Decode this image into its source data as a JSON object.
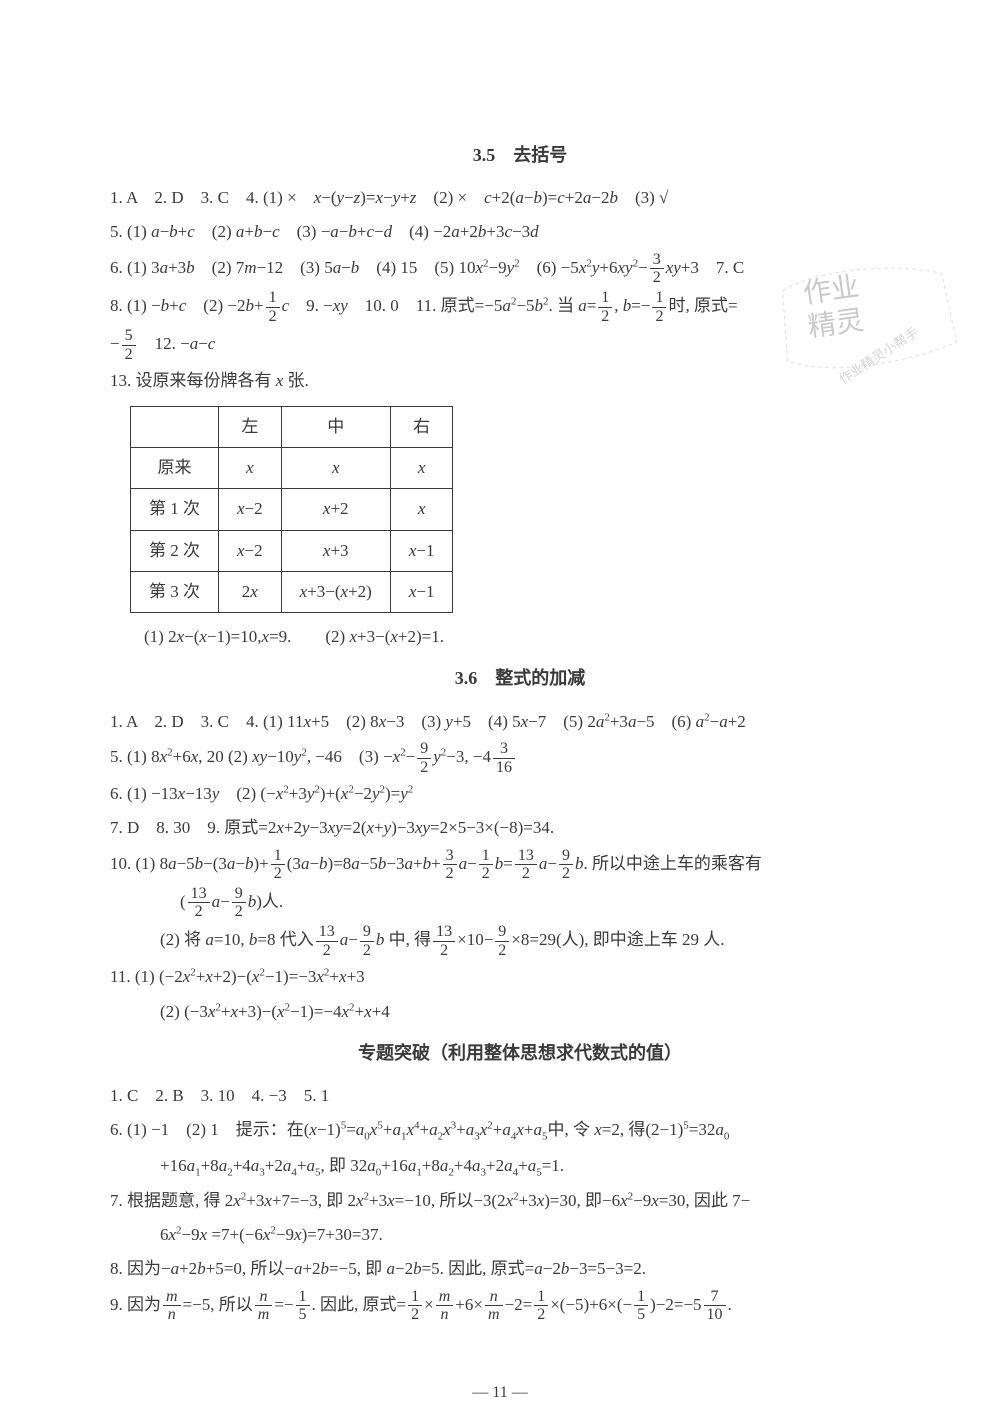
{
  "page_number": "— 11 —",
  "watermark": {
    "line1": "作业",
    "line2": "精灵",
    "small": "作业精灵小帮手"
  },
  "sections": [
    {
      "title": "3.5　去括号",
      "lines": [
        "1. A　2. D　3. C　4. (1) ×　<i>x</i>−(<i>y</i>−<i>z</i>)=<i>x</i>−<i>y</i>+<i>z</i>　(2) ×　<i>c</i>+2(<i>a</i>−<i>b</i>)=<i>c</i>+2<i>a</i>−2<i>b</i>　(3) √",
        "5. (1) <i>a</i>−<i>b</i>+<i>c</i>　(2) <i>a</i>+<i>b</i>−<i>c</i>　(3) −<i>a</i>−<i>b</i>+<i>c</i>−<i>d</i>　(4) −2<i>a</i>+2<i>b</i>+3<i>c</i>−3<i>d</i>",
        "6. (1) 3<i>a</i>+3<i>b</i>　(2) 7<i>m</i>−12　(3) 5<i>a</i>−<i>b</i>　(4) 15　(5) 10<i>x</i><sup>2</sup>−9<i>y</i><sup>2</sup>　(6) −5<i>x</i><sup>2</sup><i>y</i>+6<i>x</i><i>y</i><sup>2</sup>−{frac:3:2}<i>xy</i>+3　7. C",
        "8. (1) −<i>b</i>+<i>c</i>　(2) −2<i>b</i>+{frac:1:2}<i>c</i>　9. −<i>xy</i>　10. 0　11. 原式=−5<i>a</i><sup>2</sup>−5<i>b</i><sup>2</sup>. 当 <i>a</i>={frac:1:2}, <i>b</i>=−{frac:1:2}时, 原式=",
        "−{frac:5:2}　12. −<i>a</i>−<i>c</i>",
        "13. 设原来每份牌各有 <i>x</i> 张."
      ],
      "table": {
        "headers": [
          "",
          "左",
          "中",
          "右"
        ],
        "rows": [
          [
            "原来",
            "<i>x</i>",
            "<i>x</i>",
            "<i>x</i>"
          ],
          [
            "第 1 次",
            "<i>x</i>−2",
            "<i>x</i>+2",
            "<i>x</i>"
          ],
          [
            "第 2 次",
            "<i>x</i>−2",
            "<i>x</i>+3",
            "<i>x</i>−1"
          ],
          [
            "第 3 次",
            "2<i>x</i>",
            "<i>x</i>+3−(<i>x</i>+2)",
            "<i>x</i>−1"
          ]
        ]
      },
      "after_table": "　　(1) 2<i>x</i>−(<i>x</i>−1)=10,<i>x</i>=9.　　(2) <i>x</i>+3−(<i>x</i>+2)=1."
    },
    {
      "title": "3.6　整式的加减",
      "lines": [
        "1. A　2. D　3. C　4. (1) 11<i>x</i>+5　(2) 8<i>x</i>−3　(3) <i>y</i>+5　(4) 5<i>x</i>−7　(5) 2<i>a</i><sup>2</sup>+3<i>a</i>−5　(6) <i>a</i><sup>2</sup>−<i>a</i>+2",
        "5. (1) 8<i>x</i><sup>2</sup>+6<i>x</i>, 20 (2) <i>xy</i>−10<i>y</i><sup>2</sup>, −46　(3) −<i>x</i><sup>2</sup>−{frac:9:2}<i>y</i><sup>2</sup>−3, −4{frac:3:16}",
        "6. (1) −13<i>x</i>−13<i>y</i>　(2) (−<i>x</i><sup>2</sup>+3<i>y</i><sup>2</sup>)+(<i>x</i><sup>2</sup>−2<i>y</i><sup>2</sup>)=<i>y</i><sup>2</sup>",
        "7. D　8. 30　9. 原式=2<i>x</i>+2<i>y</i>−3<i>xy</i>=2(<i>x</i>+<i>y</i>)−3<i>xy</i>=2×5−3×(−8)=34.",
        "10. (1) 8<i>a</i>−5<i>b</i>−(3<i>a</i>−<i>b</i>)+{frac:1:2}(3<i>a</i>−<i>b</i>)=8<i>a</i>−5<i>b</i>−3<i>a</i>+<i>b</i>+{frac:3:2}<i>a</i>−{frac:1:2}<i>b</i>={frac:13:2}<i>a</i>−{frac:9:2}<i>b</i>. 所以中途上车的乘客有",
        "{indent2}({frac:13:2}<i>a</i>−{frac:9:2}<i>b</i>)人.",
        "{indent}(2) 将 <i>a</i>=10, <i>b</i>=8 代入{frac:13:2}<i>a</i>−{frac:9:2}<i>b</i> 中, 得{frac:13:2}×10−{frac:9:2}×8=29(人), 即中途上车 29 人.",
        "11. (1) (−2<i>x</i><sup>2</sup>+<i>x</i>+2)−(<i>x</i><sup>2</sup>−1)=−3<i>x</i><sup>2</sup>+<i>x</i>+3",
        "{indent}(2) (−3<i>x</i><sup>2</sup>+<i>x</i>+3)−(<i>x</i><sup>2</sup>−1)=−4<i>x</i><sup>2</sup>+<i>x</i>+4"
      ]
    },
    {
      "title": "专题突破（利用整体思想求代数式的值）",
      "lines": [
        "1. C　2. B　3. 10　4. −3　5. 1",
        "6. (1) −1　(2) 1　提示：在(<i>x</i>−1)<sup>5</sup>=<i>a</i><sub>0</sub><i>x</i><sup>5</sup>+<i>a</i><sub>1</sub><i>x</i><sup>4</sup>+<i>a</i><sub>2</sub><i>x</i><sup>3</sup>+<i>a</i><sub>3</sub><i>x</i><sup>2</sup>+<i>a</i><sub>4</sub><i>x</i>+<i>a</i><sub>5</sub>中, 令 <i>x</i>=2, 得(2−1)<sup>5</sup>=32<i>a</i><sub>0</sub>",
        "{indent}+16<i>a</i><sub>1</sub>+8<i>a</i><sub>2</sub>+4<i>a</i><sub>3</sub>+2<i>a</i><sub>4</sub>+<i>a</i><sub>5</sub>, 即 32<i>a</i><sub>0</sub>+16<i>a</i><sub>1</sub>+8<i>a</i><sub>2</sub>+4<i>a</i><sub>3</sub>+2<i>a</i><sub>4</sub>+<i>a</i><sub>5</sub>=1.",
        "7. 根据题意, 得 2<i>x</i><sup>2</sup>+3<i>x</i>+7=−3, 即 2<i>x</i><sup>2</sup>+3<i>x</i>=−10, 所以−3(2<i>x</i><sup>2</sup>+3<i>x</i>)=30, 即−6<i>x</i><sup>2</sup>−9<i>x</i>=30, 因此 7−",
        "{indent}6<i>x</i><sup>2</sup>−9<i>x</i> =7+(−6<i>x</i><sup>2</sup>−9<i>x</i>)=7+30=37.",
        "8. 因为−<i>a</i>+2<i>b</i>+5=0, 所以−<i>a</i>+2<i>b</i>=−5, 即 <i>a</i>−2<i>b</i>=5. 因此, 原式=<i>a</i>−2<i>b</i>−3=5−3=2.",
        "9. 因为{frac:<i>m</i>:<i>n</i>}=−5, 所以{frac:<i>n</i>:<i>m</i>}=−{frac:1:5}. 因此, 原式={frac:1:2}×{frac:<i>m</i>:<i>n</i>}+6×{frac:<i>n</i>:<i>m</i>}−2={frac:1:2}×(−5)+6×(−{frac:1:5})−2=−5{frac:7:10}."
      ]
    }
  ]
}
